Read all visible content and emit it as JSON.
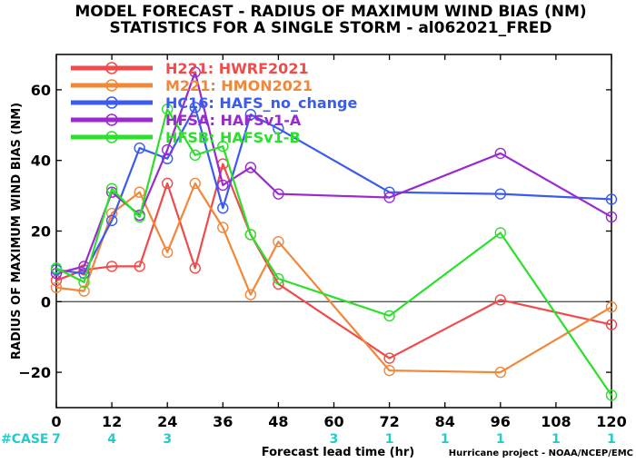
{
  "chart_data": {
    "type": "line",
    "title": "MODEL FORECAST - RADIUS OF MAXIMUM WIND BIAS (NM)",
    "subtitle": "STATISTICS FOR A SINGLE STORM - al062021_FRED",
    "xlabel": "Forecast lead time (hr)",
    "ylabel": "RADIUS OF MAXIMUM WIND BIAS (NM)",
    "xlim": [
      0,
      120
    ],
    "ylim": [
      -30,
      70
    ],
    "x_ticks": [
      0,
      12,
      24,
      36,
      48,
      60,
      72,
      84,
      96,
      108,
      120
    ],
    "y_ticks": [
      -20,
      0,
      20,
      40,
      60
    ],
    "reference_line": 0,
    "legend_position": "top-left",
    "credit": "Hurricane project - NOAA/NCEP/EMC",
    "cases": {
      "label": "#CASE",
      "color": "#22cccc",
      "entries": [
        {
          "x": 0,
          "n": "7"
        },
        {
          "x": 12,
          "n": "4"
        },
        {
          "x": 24,
          "n": "3"
        },
        {
          "x": 60,
          "n": "3"
        },
        {
          "x": 72,
          "n": "1"
        },
        {
          "x": 84,
          "n": "1"
        },
        {
          "x": 96,
          "n": "1"
        },
        {
          "x": 108,
          "n": "1"
        },
        {
          "x": 120,
          "n": "1"
        }
      ]
    },
    "series": [
      {
        "name": "H221: HWRF2021",
        "color": "#f04a4a",
        "x": [
          0,
          6,
          12,
          18,
          24,
          30,
          36,
          42,
          48,
          72,
          96,
          120
        ],
        "y": [
          6,
          9,
          10,
          10,
          33.5,
          9.5,
          39,
          19,
          5,
          -16,
          0.5,
          -6.5
        ]
      },
      {
        "name": "M221: HMON2021",
        "color": "#f0883a",
        "x": [
          0,
          6,
          12,
          18,
          24,
          30,
          36,
          42,
          48,
          72,
          96,
          120
        ],
        "y": [
          4,
          3,
          25,
          31,
          14,
          33.5,
          21,
          2,
          17,
          -19.5,
          -20,
          -1.5
        ]
      },
      {
        "name": "HC16: HAFS_no_change",
        "color": "#3a5af0",
        "x": [
          0,
          6,
          12,
          18,
          24,
          30,
          36,
          42,
          48,
          72,
          96,
          120
        ],
        "y": [
          9,
          8,
          23,
          43.5,
          40.5,
          55,
          26.5,
          53,
          49,
          31,
          30.5,
          29
        ]
      },
      {
        "name": "HFSA: HAFSv1-A",
        "color": "#9a2ad0",
        "x": [
          0,
          6,
          12,
          18,
          24,
          30,
          36,
          42,
          48,
          72,
          96,
          120
        ],
        "y": [
          8,
          10,
          31,
          24.5,
          43,
          65,
          33,
          38,
          30.5,
          29.5,
          42,
          24
        ]
      },
      {
        "name": "HFSB: HAFSv1-B",
        "color": "#2ae02a",
        "x": [
          0,
          6,
          12,
          18,
          24,
          30,
          36,
          42,
          48,
          72,
          96,
          120
        ],
        "y": [
          9.5,
          5.5,
          32,
          24,
          54.5,
          41.5,
          44,
          19,
          6.5,
          -4,
          19.5,
          -26.5
        ]
      }
    ]
  }
}
